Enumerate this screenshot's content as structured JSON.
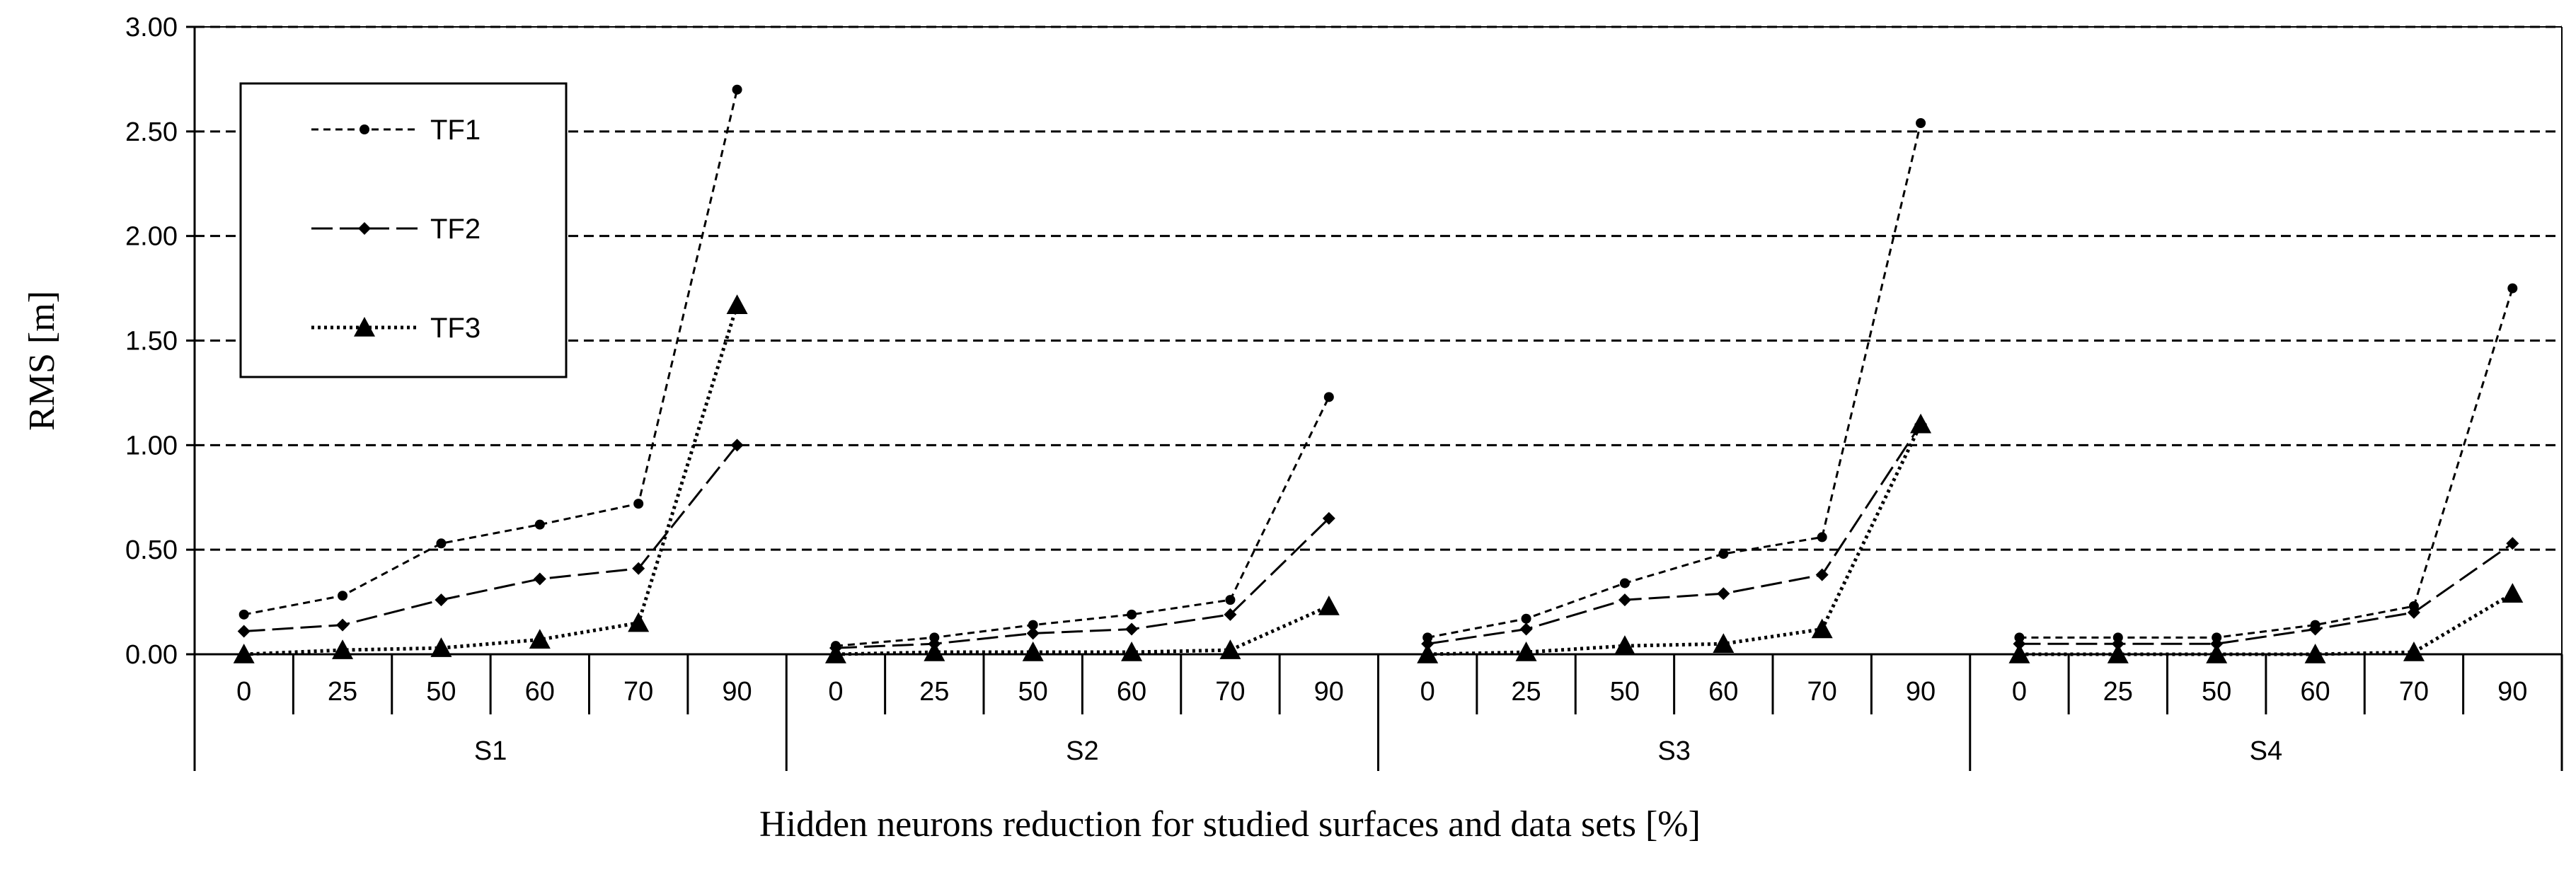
{
  "chart_data": {
    "type": "line",
    "ylabel": "RMS [m]",
    "xlabel": "Hidden neurons reduction for studied surfaces and data sets [%]",
    "ylim": [
      0,
      3
    ],
    "yticks": [
      "0.00",
      "0.50",
      "1.00",
      "1.50",
      "2.00",
      "2.50",
      "3.00"
    ],
    "grid": "horizontal dashed",
    "legend_position": "top-left",
    "groups": [
      "S1",
      "S2",
      "S3",
      "S4"
    ],
    "categories": [
      "0",
      "25",
      "50",
      "60",
      "70",
      "90"
    ],
    "series": [
      {
        "name": "TF1",
        "style": "short-dash, small circle marker",
        "values": [
          [
            0.19,
            0.28,
            0.53,
            0.62,
            0.72,
            2.7
          ],
          [
            0.04,
            0.08,
            0.14,
            0.19,
            0.26,
            1.23
          ],
          [
            0.08,
            0.17,
            0.34,
            0.48,
            0.56,
            2.54
          ],
          [
            0.08,
            0.08,
            0.08,
            0.14,
            0.23,
            1.75
          ]
        ]
      },
      {
        "name": "TF2",
        "style": "long-dash, diamond marker",
        "values": [
          [
            0.11,
            0.14,
            0.26,
            0.36,
            0.41,
            1.0
          ],
          [
            0.03,
            0.05,
            0.1,
            0.12,
            0.19,
            0.65
          ],
          [
            0.05,
            0.12,
            0.26,
            0.29,
            0.38,
            1.1
          ],
          [
            0.05,
            0.05,
            0.05,
            0.12,
            0.2,
            0.53
          ]
        ]
      },
      {
        "name": "TF3",
        "style": "dotted, filled triangle marker",
        "values": [
          [
            0.0,
            0.02,
            0.03,
            0.07,
            0.15,
            1.67
          ],
          [
            0.0,
            0.01,
            0.01,
            0.01,
            0.02,
            0.23
          ],
          [
            0.0,
            0.01,
            0.04,
            0.05,
            0.12,
            1.1
          ],
          [
            0.0,
            0.0,
            0.0,
            0.0,
            0.01,
            0.29
          ]
        ]
      }
    ]
  }
}
